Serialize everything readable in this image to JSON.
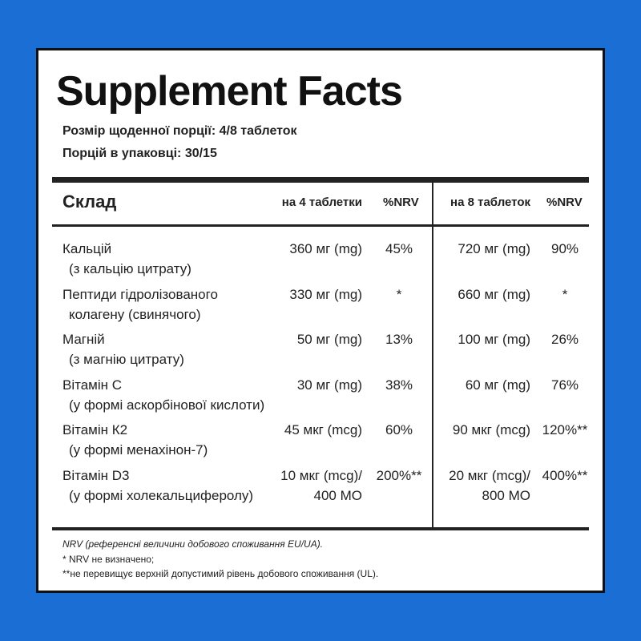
{
  "header": {
    "title": "Supplement Facts",
    "serving_size": "Розмір щоденної порції:  4/8 таблеток",
    "servings": "Порцій в упаковці: 30/15"
  },
  "table": {
    "columns": [
      "Склад",
      "на 4 таблетки",
      "%NRV",
      "на 8 таблеток",
      "%NRV"
    ],
    "rows": [
      {
        "name": [
          "Кальцій",
          "(з кальцію цитрату)"
        ],
        "dose4": [
          "360 мг (mg)"
        ],
        "nrv4": "45%",
        "dose8": [
          "720 мг (mg)"
        ],
        "nrv8": "90%"
      },
      {
        "name": [
          "Пептиди гідролізованого",
          "колагену (свинячого)"
        ],
        "dose4": [
          "330 мг (mg)"
        ],
        "nrv4": "*",
        "dose8": [
          "660 мг (mg)"
        ],
        "nrv8": "*"
      },
      {
        "name": [
          "Магній",
          "(з магнію цитрату)"
        ],
        "dose4": [
          "50 мг (mg)"
        ],
        "nrv4": "13%",
        "dose8": [
          "100 мг (mg)"
        ],
        "nrv8": "26%"
      },
      {
        "name": [
          "Вітамін С",
          "(у формі аскорбінової кислоти)"
        ],
        "dose4": [
          "30 мг (mg)"
        ],
        "nrv4": "38%",
        "dose8": [
          "60 мг (mg)"
        ],
        "nrv8": "76%"
      },
      {
        "name": [
          "Вітамін К2",
          "(у формі менахінон-7)"
        ],
        "dose4": [
          "45 мкг (mcg)"
        ],
        "nrv4": "60%",
        "dose8": [
          "90 мкг (mcg)"
        ],
        "nrv8": "120%**"
      },
      {
        "name": [
          "Вітамін D3",
          "(у формі холекальциферолу)"
        ],
        "dose4": [
          "10 мкг (mcg)/",
          "400 МО"
        ],
        "nrv4": "200%**",
        "dose8": [
          "20 мкг (mcg)/",
          "800 МО"
        ],
        "nrv8": "400%**"
      }
    ]
  },
  "footer": [
    "NRV (референсні величини добового споживання EU/UA).",
    "* NRV не визначено;",
    "**не перевищує верхній допустимий рівень добового споживання (UL)."
  ]
}
